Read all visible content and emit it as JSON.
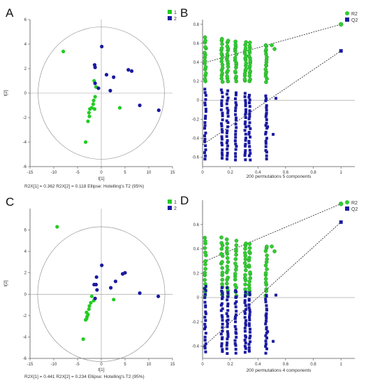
{
  "chart_data": [
    {
      "panel": "A",
      "type": "scatter",
      "xlabel": "t[1]",
      "ylabel": "t[2]",
      "xlim": [
        -15,
        15
      ],
      "ylim": [
        -6,
        6
      ],
      "x_ticks": [
        -15,
        -10,
        -5,
        0,
        5,
        10,
        15
      ],
      "y_ticks": [
        -6,
        -4,
        -2,
        0,
        2,
        4,
        6
      ],
      "grid": false,
      "legend_position": "top-right",
      "ellipse": {
        "cx": 0,
        "cy": 0,
        "rx": 13.3,
        "ry": 5.4
      },
      "footnote": "R2X[1] = 0.362   R2X[2] = 0.118   Ellipse: Hotelling's T2 (95%)",
      "series": [
        {
          "name": "1",
          "color": "#22cc22",
          "marker": "circle",
          "x": [
            -8,
            -1.5,
            -1.1,
            -1.3,
            -1.6,
            -1.7,
            -2.0,
            -2.4,
            -2.6,
            -2.5,
            -2.8,
            -1.4,
            3.9,
            -3.3
          ],
          "y": [
            3.4,
            1.0,
            0.5,
            -0.3,
            -0.6,
            -0.9,
            -1.2,
            -1.3,
            -1.6,
            -1.9,
            -2.3,
            -1.3,
            -1.2,
            -4.0
          ]
        },
        {
          "name": "2",
          "color": "#1a1aa0",
          "marker": "circle",
          "x": [
            0.1,
            -1.4,
            -1.3,
            1.1,
            2.6,
            5.7,
            6.4,
            8.1,
            12.1,
            1.9,
            -0.6,
            -1.3
          ],
          "y": [
            3.8,
            2.3,
            2.1,
            1.5,
            1.3,
            1.9,
            1.8,
            -1.0,
            -1.4,
            0.2,
            0.4,
            0.8
          ]
        }
      ]
    },
    {
      "panel": "B",
      "type": "scatter",
      "xlabel": "200 permutations 5 components",
      "ylabel": "",
      "xlim": [
        0,
        1.1
      ],
      "ylim": [
        -0.7,
        0.85
      ],
      "x_ticks": [
        0,
        0.2,
        0.4,
        0.6,
        0.8,
        1
      ],
      "y_ticks": [
        -0.6,
        -0.4,
        -0.2,
        0,
        0.2,
        0.4,
        0.6,
        0.8
      ],
      "grid": false,
      "legend_position": "top-right",
      "series": [
        {
          "name": "R2",
          "color": "#33cc33",
          "marker": "circle",
          "point": [
            1,
            0.8
          ],
          "intercept": 0.39,
          "cluster_x": [
            0.02,
            0.14,
            0.18,
            0.24,
            0.31,
            0.34,
            0.46
          ],
          "cluster_range": [
            0.2,
            0.66
          ]
        },
        {
          "name": "Q2",
          "color": "#1a1aa0",
          "marker": "square",
          "point": [
            1,
            0.52
          ],
          "intercept": -0.47,
          "cluster_x": [
            0.02,
            0.14,
            0.18,
            0.24,
            0.31,
            0.34,
            0.46
          ],
          "cluster_range": [
            -0.62,
            0.12
          ]
        }
      ]
    },
    {
      "panel": "C",
      "type": "scatter",
      "xlabel": "t[1]",
      "ylabel": "t[2]",
      "xlim": [
        -15,
        15
      ],
      "ylim": [
        -6,
        8
      ],
      "x_ticks": [
        -15,
        -10,
        -5,
        0,
        5,
        10,
        15
      ],
      "y_ticks": [
        -6,
        -4,
        -2,
        0,
        2,
        4,
        6
      ],
      "grid": false,
      "legend_position": "top-right",
      "ellipse": {
        "cx": 0,
        "cy": 0,
        "rx": 13.4,
        "ry": 6.3
      },
      "footnote": "R2X[1] = 0.441   R2X[2] = 0.234   Ellipse: Hotelling's T2 (95%)",
      "series": [
        {
          "name": "1",
          "color": "#22cc22",
          "marker": "circle",
          "x": [
            -9.3,
            -2.0,
            -2.2,
            -2.5,
            -2.6,
            -2.8,
            -3.0,
            -3.1,
            -3.3,
            -3.1,
            -1.6,
            2.6,
            -3.8
          ],
          "y": [
            6.3,
            -0.2,
            -0.8,
            -1.1,
            -1.4,
            -1.9,
            -2.1,
            -2.3,
            -2.4,
            -1.7,
            -0.6,
            -0.5,
            -4.2
          ]
        },
        {
          "name": "2",
          "color": "#1a1aa0",
          "marker": "circle",
          "x": [
            0.1,
            -1.0,
            -1.1,
            3.0,
            4.5,
            5.0,
            8.1,
            12.0,
            2.0,
            -1.5,
            -0.9,
            -1.3
          ],
          "y": [
            2.7,
            1.6,
            0.9,
            1.2,
            1.9,
            2.0,
            0.1,
            -0.2,
            0.6,
            0.9,
            0.4,
            -0.4
          ]
        }
      ]
    },
    {
      "panel": "D",
      "type": "scatter",
      "xlabel": "200 permutations 4 components",
      "ylabel": "",
      "xlim": [
        0,
        1.1
      ],
      "ylim": [
        -0.5,
        0.8
      ],
      "x_ticks": [
        0,
        0.2,
        0.4,
        0.6,
        0.8,
        1
      ],
      "y_ticks": [
        -0.4,
        -0.2,
        0,
        0.2,
        0.4,
        0.6
      ],
      "grid": false,
      "legend_position": "top-right",
      "series": [
        {
          "name": "R2",
          "color": "#33cc33",
          "marker": "circle",
          "point": [
            1,
            0.77
          ],
          "intercept": 0.29,
          "cluster_x": [
            0.02,
            0.14,
            0.18,
            0.24,
            0.31,
            0.34,
            0.46
          ],
          "cluster_range": [
            0.02,
            0.5
          ]
        },
        {
          "name": "Q2",
          "color": "#1a1aa0",
          "marker": "square",
          "point": [
            1,
            0.62
          ],
          "intercept": -0.41,
          "cluster_x": [
            0.02,
            0.14,
            0.18,
            0.24,
            0.31,
            0.34,
            0.46
          ],
          "cluster_range": [
            -0.45,
            0.1
          ]
        }
      ]
    }
  ],
  "panel_letters": [
    "A",
    "B",
    "C",
    "D"
  ]
}
